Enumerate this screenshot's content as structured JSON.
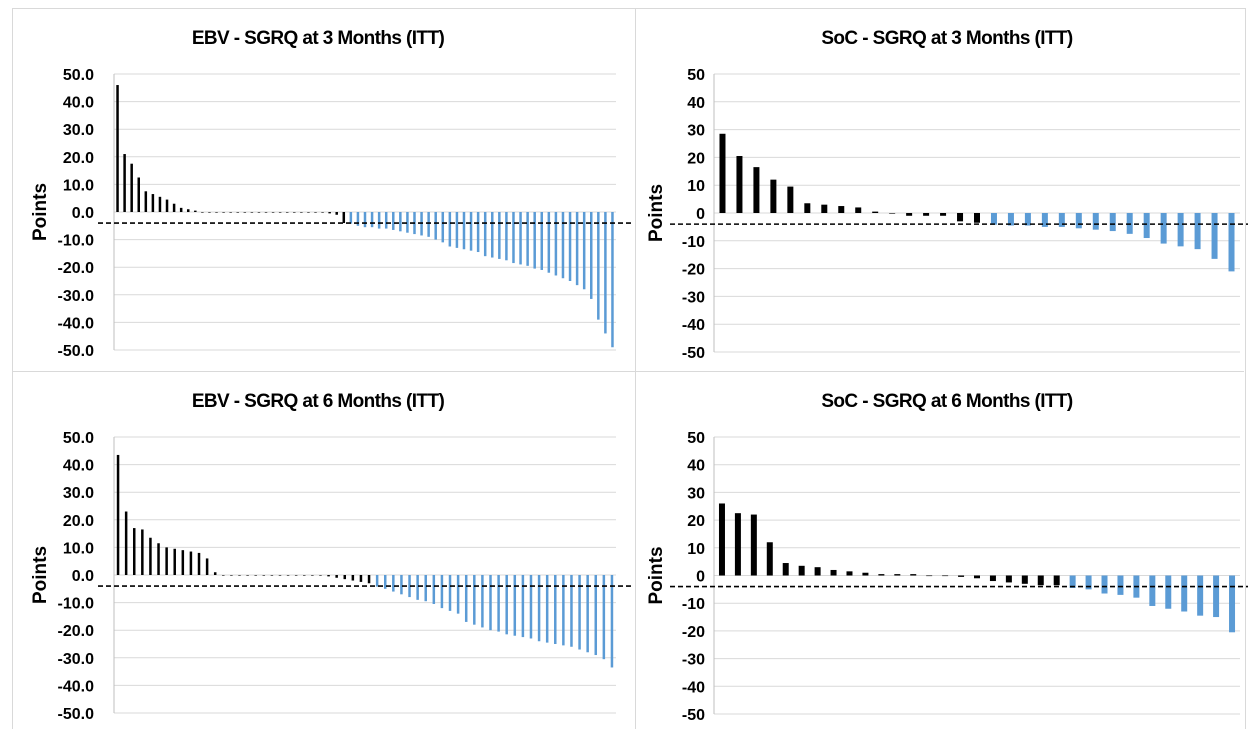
{
  "chart_data": [
    {
      "type": "bar",
      "title": "EBV - SGRQ at 3 Months (ITT)",
      "ylabel": "Points",
      "ylim": [
        -50,
        50
      ],
      "yticks": [
        "50.0",
        "40.0",
        "30.0",
        "20.0",
        "10.0",
        "0.0",
        "-10.0",
        "-20.0",
        "-30.0",
        "-40.0",
        "-50.0"
      ],
      "grid": true,
      "threshold": -4,
      "colors": {
        "above": "#000000",
        "below": "#5b9bd5"
      },
      "values": [
        46,
        21,
        17.5,
        12.5,
        7.5,
        6.5,
        5.5,
        4.5,
        3,
        1.5,
        1,
        0.5,
        0,
        0,
        0,
        0,
        0,
        0,
        0,
        0,
        0,
        0,
        0,
        0,
        0,
        0,
        0,
        0,
        0,
        0,
        -0.5,
        -1,
        -4,
        -4.2,
        -5,
        -5.5,
        -5.5,
        -6,
        -6,
        -6.5,
        -7,
        -7.5,
        -8,
        -8.5,
        -9,
        -10,
        -11,
        -12.5,
        -13,
        -13.5,
        -14,
        -14.5,
        -16,
        -16.5,
        -17,
        -17.5,
        -18.5,
        -19,
        -19.5,
        -20.5,
        -21,
        -22,
        -23,
        -24,
        -25,
        -26.5,
        -28,
        -31.5,
        -39,
        -44,
        -49
      ]
    },
    {
      "type": "bar",
      "title": "SoC - SGRQ at 3 Months (ITT)",
      "ylabel": "Points",
      "ylim": [
        -50,
        50
      ],
      "yticks": [
        "50",
        "40",
        "30",
        "20",
        "10",
        "0",
        "-10",
        "-20",
        "-30",
        "-40",
        "-50"
      ],
      "grid": true,
      "threshold": -4,
      "colors": {
        "above": "#000000",
        "below": "#5b9bd5"
      },
      "values": [
        28.5,
        20.5,
        16.5,
        12,
        9.5,
        3.5,
        3,
        2.5,
        2,
        0.5,
        0,
        -1,
        -1,
        -1,
        -3,
        -3.5,
        -4.2,
        -4.5,
        -4.5,
        -5,
        -5,
        -5.5,
        -6,
        -6.5,
        -7.5,
        -9,
        -11,
        -12,
        -13,
        -16.5,
        -21
      ]
    },
    {
      "type": "bar",
      "title": "EBV - SGRQ at 6 Months (ITT)",
      "ylabel": "Points",
      "ylim": [
        -50,
        50
      ],
      "yticks": [
        "50.0",
        "40.0",
        "30.0",
        "20.0",
        "10.0",
        "0.0",
        "-10.0",
        "-20.0",
        "-30.0",
        "-40.0",
        "-50.0"
      ],
      "grid": true,
      "threshold": -4,
      "colors": {
        "above": "#000000",
        "below": "#5b9bd5"
      },
      "values": [
        43.5,
        23,
        17,
        16.5,
        13.5,
        11.5,
        10,
        9.5,
        9,
        8.5,
        8,
        6,
        1,
        0,
        0,
        0,
        0,
        0,
        0,
        0,
        0,
        0,
        0,
        0,
        0,
        0,
        -0.5,
        -1,
        -1.5,
        -2,
        -2.5,
        -3,
        -4.2,
        -5,
        -6,
        -7,
        -8,
        -9,
        -9.5,
        -10.5,
        -12,
        -13,
        -14,
        -17,
        -18,
        -19,
        -20,
        -20.5,
        -21.5,
        -22,
        -22.5,
        -23,
        -24,
        -24.5,
        -25,
        -25.5,
        -26,
        -27,
        -28,
        -29,
        -30.5,
        -33.5
      ]
    },
    {
      "type": "bar",
      "title": "SoC - SGRQ at 6 Months (ITT)",
      "ylabel": "Points",
      "ylim": [
        -50,
        50
      ],
      "yticks": [
        "50",
        "40",
        "30",
        "20",
        "10",
        "0",
        "-10",
        "-20",
        "-30",
        "-40",
        "-50"
      ],
      "grid": true,
      "threshold": -4,
      "colors": {
        "above": "#000000",
        "below": "#5b9bd5"
      },
      "values": [
        26,
        22.5,
        22,
        12,
        4.5,
        3.5,
        3,
        2,
        1.5,
        1,
        0.5,
        0.5,
        0.5,
        0,
        0,
        -0.5,
        -1,
        -2,
        -2.5,
        -3,
        -3.5,
        -3.5,
        -4.5,
        -5,
        -6.5,
        -7,
        -8,
        -11,
        -12,
        -13,
        -14.5,
        -15,
        -20.5
      ]
    }
  ]
}
